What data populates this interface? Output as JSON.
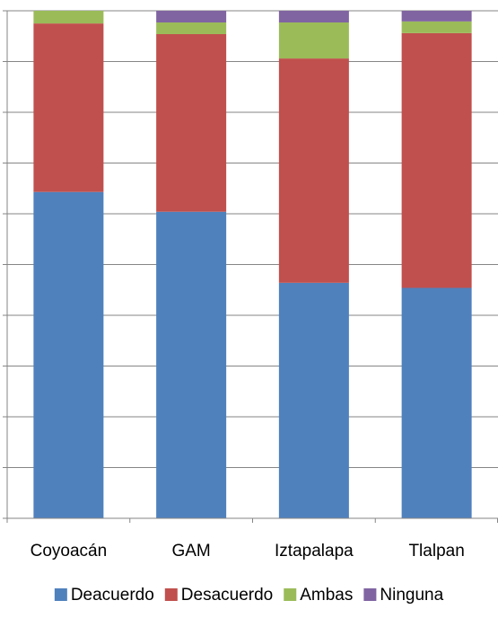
{
  "chart_data": {
    "type": "bar",
    "stacked": true,
    "percent_stacked": true,
    "categories": [
      "Coyoacán",
      "GAM",
      "Iztapalapa",
      "Tlalpan"
    ],
    "series": [
      {
        "name": "Deacuerdo",
        "color": "#4F81BD",
        "values": [
          64.3,
          60.4,
          46.4,
          45.4
        ]
      },
      {
        "name": "Desacuerdo",
        "color": "#C0504D",
        "values": [
          33.2,
          35.0,
          44.2,
          50.2
        ]
      },
      {
        "name": "Ambas",
        "color": "#9BBB59",
        "values": [
          2.5,
          2.3,
          7.1,
          2.3
        ]
      },
      {
        "name": "Ninguna",
        "color": "#8064A2",
        "values": [
          0,
          2.3,
          2.3,
          2.1
        ]
      }
    ],
    "ylim": [
      0,
      100
    ],
    "ytick_step": 10,
    "grid": true,
    "y_tick_labels_visible": false,
    "title": "",
    "xlabel": "",
    "ylabel": "",
    "legend_position": "bottom"
  }
}
